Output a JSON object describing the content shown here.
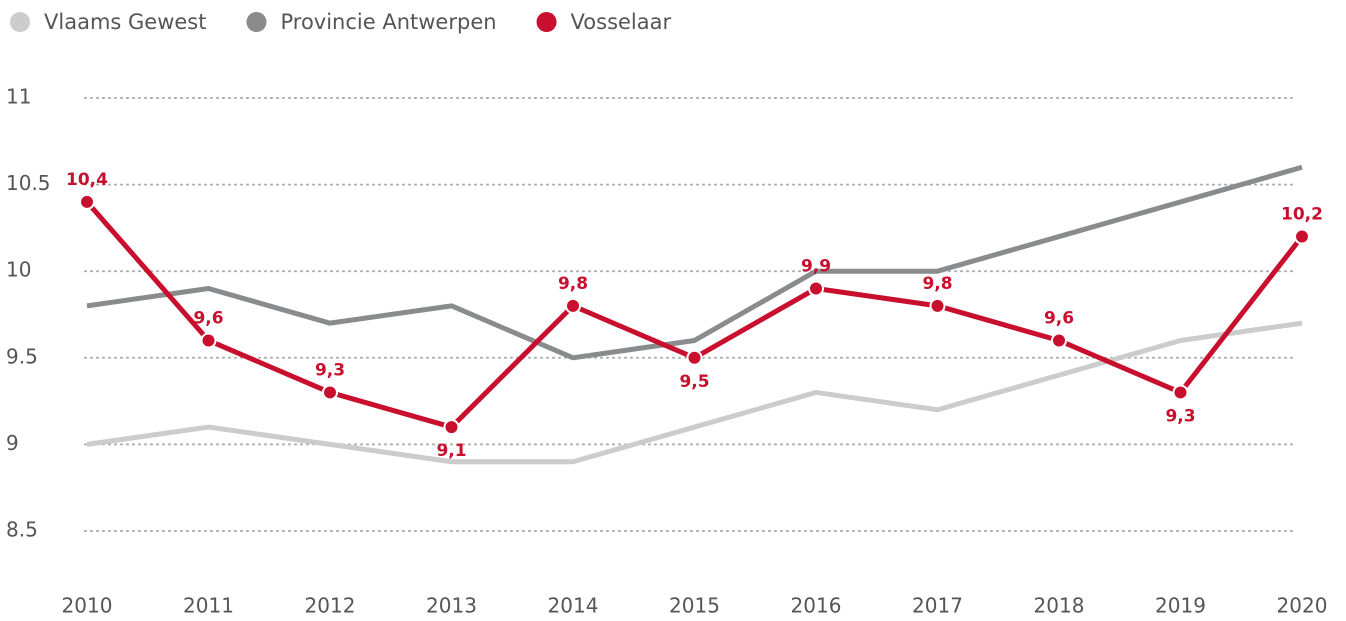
{
  "chart_data": {
    "type": "line",
    "categories": [
      "2010",
      "2011",
      "2012",
      "2013",
      "2014",
      "2015",
      "2016",
      "2017",
      "2018",
      "2019",
      "2020"
    ],
    "series": [
      {
        "name": "Vlaams Gewest",
        "color": "#cccccc",
        "values": [
          9.0,
          9.1,
          9.0,
          8.9,
          8.9,
          9.1,
          9.3,
          9.2,
          9.4,
          9.6,
          9.7
        ]
      },
      {
        "name": "Provincie Antwerpen",
        "color": "#8a8b8d",
        "values": [
          9.8,
          9.9,
          9.7,
          9.8,
          9.5,
          9.6,
          10.0,
          10.0,
          10.2,
          10.4,
          10.6
        ]
      },
      {
        "name": "Vosselaar",
        "color": "#c8102e",
        "values": [
          10.4,
          9.6,
          9.3,
          9.1,
          9.8,
          9.5,
          9.9,
          9.8,
          9.6,
          9.3,
          10.2
        ],
        "value_labels": [
          "10,4",
          "9,6",
          "9,3",
          "9,1",
          "9,8",
          "9,5",
          "9,9",
          "9,8",
          "9,6",
          "9,3",
          "10,2"
        ],
        "markers": true
      }
    ],
    "ylim": [
      8.5,
      11
    ],
    "yticks": [
      8.5,
      9,
      9.5,
      10,
      10.5,
      11
    ],
    "grid": true,
    "legend": "top-left"
  }
}
